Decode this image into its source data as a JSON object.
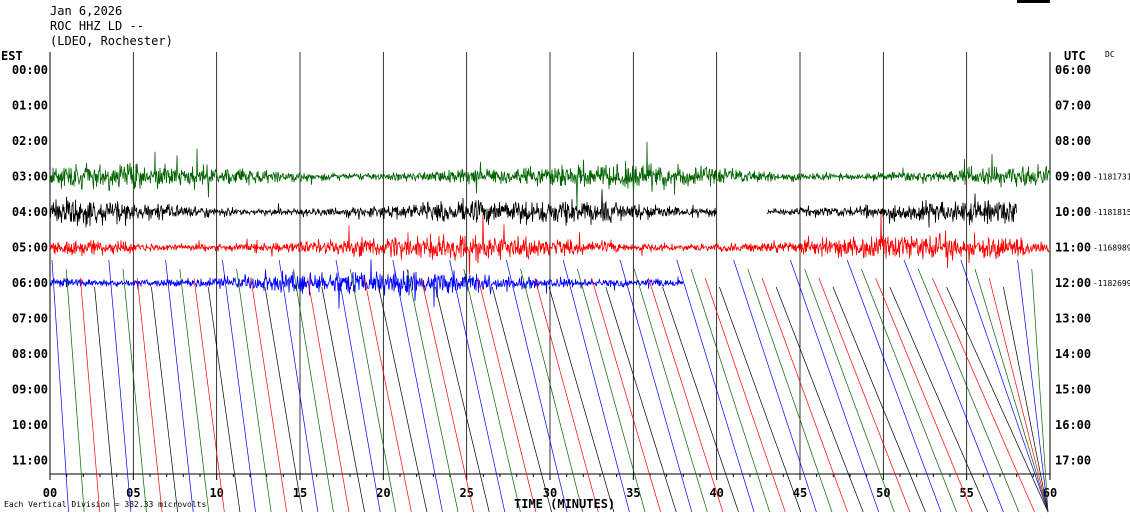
{
  "header": {
    "date": "Jan 6,2026",
    "station": "ROC HHZ LD --",
    "source": "(LDEO, Rochester)"
  },
  "left_timezone": "EST",
  "right_timezone": "UTC",
  "dc_label": "DC",
  "scale_note": "Each Vertical Division = 382.33 microvolts",
  "colors": {
    "background": "#ffffff",
    "grid": "#000000",
    "trace_cycle": [
      "#006400",
      "#000000",
      "#ff0000",
      "#0000ff"
    ]
  },
  "chart_data": {
    "type": "line",
    "description_type": "helicorder",
    "xlabel": "TIME (MINUTES)",
    "xlim": [
      0,
      60
    ],
    "x_ticks": [
      "00",
      "05",
      "10",
      "15",
      "20",
      "25",
      "30",
      "35",
      "40",
      "45",
      "50",
      "55",
      "60"
    ],
    "left_row_labels": [
      "00:00",
      "01:00",
      "02:00",
      "03:00",
      "04:00",
      "05:00",
      "06:00",
      "07:00",
      "08:00",
      "09:00",
      "10:00",
      "11:00"
    ],
    "right_row_labels": [
      "06:00",
      "07:00",
      "08:00",
      "09:00",
      "10:00",
      "11:00",
      "12:00",
      "13:00",
      "14:00",
      "15:00",
      "16:00",
      "17:00"
    ],
    "dc_offsets": [
      {
        "row": "09:00",
        "value": "-1181731"
      },
      {
        "row": "10:00",
        "value": "-1181815"
      },
      {
        "row": "11:00",
        "value": "-1168989"
      },
      {
        "row": "12:00",
        "value": "-1182699"
      }
    ],
    "traces": [
      {
        "row": "03:00",
        "color": "green",
        "start_min": 0,
        "end_min": 60,
        "gaps": []
      },
      {
        "row": "04:00",
        "color": "black",
        "start_min": 0,
        "end_min": 58,
        "gaps": [
          [
            40,
            43
          ]
        ]
      },
      {
        "row": "05:00",
        "color": "red",
        "start_min": 0,
        "end_min": 60,
        "gaps": []
      },
      {
        "row": "06:00",
        "color": "blue",
        "start_min": 0,
        "end_min": 38,
        "gaps": []
      }
    ],
    "grid": true
  }
}
